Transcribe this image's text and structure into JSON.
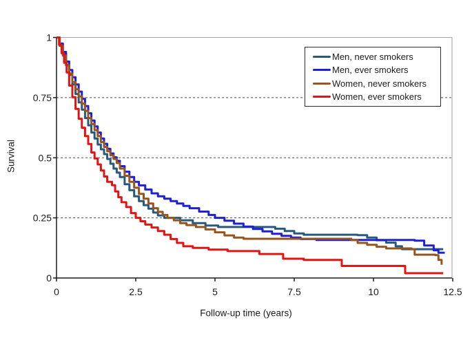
{
  "chart_data": {
    "type": "line",
    "subtype": "kaplan-meier-step",
    "title": "",
    "xlabel": "Follow-up time (years)",
    "ylabel": "Survival",
    "xlim": [
      0,
      12.5
    ],
    "ylim": [
      0,
      1
    ],
    "x_ticks": [
      0,
      2.5,
      5,
      7.5,
      10,
      12.5
    ],
    "x_tick_labels": [
      "0",
      "2.5",
      "5",
      "7.5",
      "10",
      "12.5"
    ],
    "y_ticks": [
      0,
      0.25,
      0.5,
      0.75,
      1
    ],
    "y_tick_labels": [
      "0",
      "0.25",
      "0.5",
      "0.75",
      "1"
    ],
    "grid_y": [
      0.25,
      0.5,
      0.75
    ],
    "grid_style": "dashed",
    "legend_position": "top-right-inside",
    "colors": {
      "grid": "#4d4d4d",
      "axis": "#1a1a1a",
      "frame": "#a6a6a6",
      "legend_border": "#2b2b2b"
    },
    "series": [
      {
        "name": "Men, never smokers",
        "color": "#27597D",
        "points": [
          [
            0,
            1
          ],
          [
            0.1,
            0.97
          ],
          [
            0.2,
            0.93
          ],
          [
            0.3,
            0.885
          ],
          [
            0.4,
            0.845
          ],
          [
            0.5,
            0.805
          ],
          [
            0.6,
            0.765
          ],
          [
            0.7,
            0.73
          ],
          [
            0.8,
            0.7
          ],
          [
            0.9,
            0.665
          ],
          [
            1.0,
            0.635
          ],
          [
            1.1,
            0.605
          ],
          [
            1.2,
            0.58
          ],
          [
            1.3,
            0.555
          ],
          [
            1.4,
            0.535
          ],
          [
            1.5,
            0.515
          ],
          [
            1.6,
            0.495
          ],
          [
            1.7,
            0.475
          ],
          [
            1.8,
            0.455
          ],
          [
            1.9,
            0.438
          ],
          [
            2.0,
            0.42
          ],
          [
            2.15,
            0.39
          ],
          [
            2.3,
            0.365
          ],
          [
            2.45,
            0.34
          ],
          [
            2.6,
            0.32
          ],
          [
            2.75,
            0.303
          ],
          [
            2.9,
            0.288
          ],
          [
            3.05,
            0.272
          ],
          [
            3.2,
            0.26
          ],
          [
            3.4,
            0.25
          ],
          [
            3.9,
            0.24
          ],
          [
            4.3,
            0.228
          ],
          [
            4.7,
            0.218
          ],
          [
            5.1,
            0.212
          ],
          [
            6.9,
            0.205
          ],
          [
            7.2,
            0.195
          ],
          [
            7.5,
            0.185
          ],
          [
            7.8,
            0.18
          ],
          [
            9.5,
            0.178
          ],
          [
            9.8,
            0.168
          ],
          [
            10.1,
            0.157
          ],
          [
            10.4,
            0.147
          ],
          [
            10.7,
            0.132
          ],
          [
            10.9,
            0.12
          ],
          [
            12.2,
            0.12
          ]
        ]
      },
      {
        "name": "Men, ever smokers",
        "color": "#1F1FD4",
        "points": [
          [
            0,
            1
          ],
          [
            0.1,
            0.975
          ],
          [
            0.2,
            0.94
          ],
          [
            0.3,
            0.9
          ],
          [
            0.4,
            0.865
          ],
          [
            0.5,
            0.835
          ],
          [
            0.6,
            0.805
          ],
          [
            0.7,
            0.775
          ],
          [
            0.8,
            0.745
          ],
          [
            0.9,
            0.715
          ],
          [
            1.0,
            0.685
          ],
          [
            1.1,
            0.655
          ],
          [
            1.2,
            0.63
          ],
          [
            1.3,
            0.605
          ],
          [
            1.4,
            0.58
          ],
          [
            1.5,
            0.558
          ],
          [
            1.6,
            0.537
          ],
          [
            1.7,
            0.518
          ],
          [
            1.8,
            0.502
          ],
          [
            1.9,
            0.487
          ],
          [
            2.0,
            0.465
          ],
          [
            2.15,
            0.442
          ],
          [
            2.3,
            0.42
          ],
          [
            2.45,
            0.4
          ],
          [
            2.6,
            0.385
          ],
          [
            2.8,
            0.368
          ],
          [
            3.0,
            0.352
          ],
          [
            3.2,
            0.34
          ],
          [
            3.4,
            0.33
          ],
          [
            3.6,
            0.32
          ],
          [
            3.8,
            0.31
          ],
          [
            4.0,
            0.3
          ],
          [
            4.2,
            0.29
          ],
          [
            4.5,
            0.276
          ],
          [
            4.8,
            0.262
          ],
          [
            5.0,
            0.25
          ],
          [
            5.3,
            0.238
          ],
          [
            5.6,
            0.226
          ],
          [
            5.9,
            0.214
          ],
          [
            6.2,
            0.204
          ],
          [
            6.5,
            0.194
          ],
          [
            6.8,
            0.184
          ],
          [
            7.1,
            0.175
          ],
          [
            7.4,
            0.168
          ],
          [
            7.7,
            0.162
          ],
          [
            8.2,
            0.158
          ],
          [
            11.3,
            0.155
          ],
          [
            11.6,
            0.135
          ],
          [
            11.9,
            0.115
          ],
          [
            12.05,
            0.105
          ],
          [
            12.25,
            0.105
          ]
        ]
      },
      {
        "name": "Women, never smokers",
        "color": "#96551E",
        "points": [
          [
            0,
            1
          ],
          [
            0.1,
            0.965
          ],
          [
            0.2,
            0.925
          ],
          [
            0.3,
            0.885
          ],
          [
            0.4,
            0.85
          ],
          [
            0.5,
            0.815
          ],
          [
            0.6,
            0.785
          ],
          [
            0.7,
            0.755
          ],
          [
            0.8,
            0.725
          ],
          [
            0.9,
            0.695
          ],
          [
            1.0,
            0.665
          ],
          [
            1.1,
            0.64
          ],
          [
            1.2,
            0.615
          ],
          [
            1.3,
            0.59
          ],
          [
            1.4,
            0.565
          ],
          [
            1.5,
            0.545
          ],
          [
            1.6,
            0.527
          ],
          [
            1.7,
            0.51
          ],
          [
            1.8,
            0.495
          ],
          [
            1.9,
            0.478
          ],
          [
            2.0,
            0.455
          ],
          [
            2.15,
            0.425
          ],
          [
            2.3,
            0.4
          ],
          [
            2.45,
            0.375
          ],
          [
            2.6,
            0.35
          ],
          [
            2.75,
            0.33
          ],
          [
            2.9,
            0.31
          ],
          [
            3.05,
            0.29
          ],
          [
            3.2,
            0.275
          ],
          [
            3.35,
            0.262
          ],
          [
            3.5,
            0.25
          ],
          [
            3.7,
            0.24
          ],
          [
            3.9,
            0.228
          ],
          [
            4.1,
            0.22
          ],
          [
            4.4,
            0.212
          ],
          [
            4.7,
            0.202
          ],
          [
            5.0,
            0.19
          ],
          [
            5.3,
            0.177
          ],
          [
            5.6,
            0.168
          ],
          [
            5.9,
            0.163
          ],
          [
            9.3,
            0.158
          ],
          [
            9.5,
            0.146
          ],
          [
            9.8,
            0.138
          ],
          [
            10.1,
            0.13
          ],
          [
            10.4,
            0.123
          ],
          [
            11.2,
            0.12
          ],
          [
            11.3,
            0.097
          ],
          [
            11.95,
            0.095
          ],
          [
            12.05,
            0.075
          ],
          [
            12.15,
            0.055
          ]
        ]
      },
      {
        "name": "Women, ever smokers",
        "color": "#E11414",
        "points": [
          [
            0,
            1
          ],
          [
            0.08,
            0.97
          ],
          [
            0.16,
            0.935
          ],
          [
            0.24,
            0.895
          ],
          [
            0.32,
            0.855
          ],
          [
            0.4,
            0.8
          ],
          [
            0.5,
            0.752
          ],
          [
            0.6,
            0.703
          ],
          [
            0.7,
            0.662
          ],
          [
            0.8,
            0.625
          ],
          [
            0.9,
            0.59
          ],
          [
            1.0,
            0.557
          ],
          [
            1.1,
            0.522
          ],
          [
            1.2,
            0.497
          ],
          [
            1.3,
            0.472
          ],
          [
            1.4,
            0.447
          ],
          [
            1.5,
            0.422
          ],
          [
            1.6,
            0.4
          ],
          [
            1.75,
            0.386
          ],
          [
            1.85,
            0.36
          ],
          [
            1.95,
            0.336
          ],
          [
            2.05,
            0.315
          ],
          [
            2.2,
            0.295
          ],
          [
            2.35,
            0.27
          ],
          [
            2.5,
            0.25
          ],
          [
            2.65,
            0.236
          ],
          [
            2.8,
            0.222
          ],
          [
            3.0,
            0.21
          ],
          [
            3.2,
            0.195
          ],
          [
            3.4,
            0.18
          ],
          [
            3.6,
            0.162
          ],
          [
            3.8,
            0.146
          ],
          [
            4.0,
            0.132
          ],
          [
            4.3,
            0.125
          ],
          [
            4.8,
            0.118
          ],
          [
            5.4,
            0.112
          ],
          [
            6.4,
            0.1
          ],
          [
            7.15,
            0.08
          ],
          [
            7.8,
            0.075
          ],
          [
            9.0,
            0.05
          ],
          [
            11.0,
            0.02
          ],
          [
            12.2,
            0.02
          ]
        ]
      }
    ]
  }
}
